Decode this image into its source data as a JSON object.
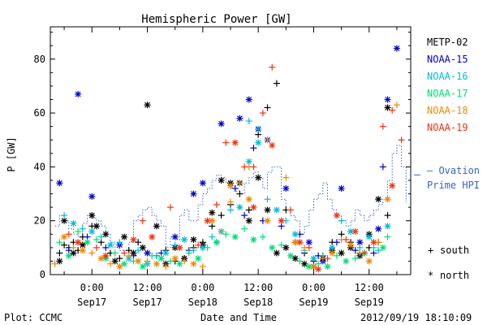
{
  "chart_data": {
    "type": "scatter",
    "title": "Hemispheric Power [GW]",
    "xlabel": "Date and Time",
    "ylabel": "P [GW]",
    "ylim": [
      0,
      92
    ],
    "yticks": [
      0,
      20,
      40,
      60,
      80
    ],
    "xlim_hours": [
      -9,
      69
    ],
    "xticks": [
      {
        "hour": 0,
        "time": "0:00",
        "date": "Sep17"
      },
      {
        "hour": 12,
        "time": "12:00",
        "date": "Sep17"
      },
      {
        "hour": 24,
        "time": "0:00",
        "date": "Sep18"
      },
      {
        "hour": 36,
        "time": "12:00",
        "date": "Sep18"
      },
      {
        "hour": 48,
        "time": "0:00",
        "date": "Sep19"
      },
      {
        "hour": 60,
        "time": "12:00",
        "date": "Sep19"
      }
    ],
    "grid": false,
    "legend_position": "right",
    "series": [
      {
        "name": "METP-02",
        "color": "#000000",
        "south": [
          [
            -7,
            8
          ],
          [
            -6,
            11
          ],
          [
            -5,
            10
          ],
          [
            -4,
            12
          ],
          [
            -3,
            9
          ],
          [
            -2,
            14
          ],
          [
            0,
            18
          ],
          [
            2,
            12
          ],
          [
            4,
            8
          ],
          [
            6,
            6
          ],
          [
            8,
            9
          ],
          [
            10,
            12
          ],
          [
            12,
            8
          ],
          [
            14,
            7
          ],
          [
            16,
            9
          ],
          [
            18,
            5
          ],
          [
            20,
            6
          ],
          [
            22,
            10
          ],
          [
            24,
            12
          ],
          [
            26,
            18
          ],
          [
            28,
            22
          ],
          [
            30,
            26
          ],
          [
            32,
            30
          ],
          [
            34,
            24
          ],
          [
            36,
            52
          ],
          [
            38,
            62
          ],
          [
            40,
            71
          ],
          [
            42,
            24
          ],
          [
            44,
            12
          ],
          [
            46,
            8
          ],
          [
            48,
            5
          ],
          [
            50,
            7
          ],
          [
            52,
            12
          ],
          [
            54,
            15
          ],
          [
            56,
            12
          ],
          [
            58,
            8
          ],
          [
            60,
            10
          ],
          [
            62,
            12
          ],
          [
            64,
            22
          ]
        ],
        "north": [
          [
            -7,
            5
          ],
          [
            -6,
            20
          ],
          [
            -4,
            8
          ],
          [
            -2,
            11
          ],
          [
            0,
            22
          ],
          [
            1,
            18
          ],
          [
            3,
            15
          ],
          [
            5,
            5
          ],
          [
            7,
            14
          ],
          [
            9,
            8
          ],
          [
            11,
            10
          ],
          [
            12,
            63
          ],
          [
            14,
            18
          ],
          [
            16,
            4
          ],
          [
            18,
            10
          ],
          [
            20,
            6
          ],
          [
            22,
            13
          ],
          [
            24,
            11
          ],
          [
            26,
            23
          ],
          [
            28,
            35
          ],
          [
            30,
            34
          ],
          [
            32,
            34
          ],
          [
            34,
            20
          ],
          [
            36,
            36
          ],
          [
            38,
            24
          ],
          [
            40,
            8
          ],
          [
            42,
            10
          ],
          [
            44,
            6
          ],
          [
            46,
            4
          ],
          [
            48,
            3
          ],
          [
            50,
            6
          ],
          [
            52,
            9
          ],
          [
            54,
            8
          ],
          [
            56,
            10
          ],
          [
            58,
            7
          ],
          [
            60,
            15
          ],
          [
            62,
            28
          ],
          [
            64,
            62
          ]
        ]
      },
      {
        "name": "NOAA-15",
        "color": "#0000cc",
        "south": [
          [
            -5,
            9
          ],
          [
            -1,
            14
          ],
          [
            3,
            10
          ],
          [
            9,
            7
          ],
          [
            15,
            8
          ],
          [
            21,
            9
          ],
          [
            27,
            12
          ],
          [
            31,
            32
          ],
          [
            33,
            22
          ],
          [
            35,
            47
          ],
          [
            37,
            20
          ],
          [
            41,
            18
          ],
          [
            45,
            15
          ],
          [
            49,
            7
          ],
          [
            53,
            12
          ],
          [
            57,
            9
          ],
          [
            61,
            8
          ],
          [
            63,
            40
          ]
        ],
        "north": [
          [
            -7,
            34
          ],
          [
            -3,
            67
          ],
          [
            0,
            29
          ],
          [
            6,
            11
          ],
          [
            12,
            8
          ],
          [
            18,
            14
          ],
          [
            22,
            30
          ],
          [
            24,
            34
          ],
          [
            28,
            56
          ],
          [
            32,
            58
          ],
          [
            34,
            65
          ],
          [
            36,
            54
          ],
          [
            38,
            50
          ],
          [
            42,
            32
          ],
          [
            47,
            12
          ],
          [
            50,
            5
          ],
          [
            54,
            32
          ],
          [
            58,
            12
          ],
          [
            62,
            17
          ],
          [
            64,
            65
          ],
          [
            66,
            84
          ]
        ]
      },
      {
        "name": "NOAA-16",
        "color": "#00bbdd",
        "south": [
          [
            -6,
            22
          ],
          [
            -2,
            17
          ],
          [
            2,
            14
          ],
          [
            6,
            12
          ],
          [
            10,
            9
          ],
          [
            14,
            7
          ],
          [
            18,
            11
          ],
          [
            22,
            9
          ],
          [
            26,
            14
          ],
          [
            30,
            24
          ],
          [
            34,
            57
          ],
          [
            36,
            54
          ],
          [
            38,
            28
          ],
          [
            42,
            20
          ],
          [
            46,
            9
          ],
          [
            50,
            7
          ],
          [
            54,
            20
          ],
          [
            58,
            10
          ],
          [
            62,
            9
          ]
        ],
        "north": [
          [
            -4,
            19
          ],
          [
            0,
            16
          ],
          [
            4,
            11
          ],
          [
            8,
            6
          ],
          [
            12,
            4
          ],
          [
            16,
            8
          ],
          [
            20,
            13
          ],
          [
            24,
            10
          ],
          [
            28,
            16
          ],
          [
            32,
            25
          ],
          [
            34,
            42
          ],
          [
            36,
            49
          ],
          [
            40,
            24
          ],
          [
            44,
            15
          ],
          [
            48,
            6
          ],
          [
            52,
            10
          ],
          [
            56,
            16
          ],
          [
            60,
            14
          ],
          [
            64,
            18
          ]
        ]
      },
      {
        "name": "NOAA-17",
        "color": "#00dd77",
        "south": [
          [
            -7,
            12
          ],
          [
            -3,
            16
          ],
          [
            1,
            13
          ],
          [
            5,
            8
          ],
          [
            9,
            5
          ],
          [
            13,
            7
          ],
          [
            17,
            5
          ],
          [
            21,
            8
          ],
          [
            25,
            10
          ],
          [
            29,
            15
          ],
          [
            33,
            17
          ],
          [
            37,
            14
          ],
          [
            41,
            11
          ],
          [
            45,
            5
          ],
          [
            49,
            4
          ],
          [
            53,
            7
          ],
          [
            57,
            6
          ],
          [
            61,
            10
          ],
          [
            64,
            14
          ]
        ],
        "north": [
          [
            -5,
            7
          ],
          [
            -1,
            12
          ],
          [
            3,
            6
          ],
          [
            7,
            4
          ],
          [
            11,
            3
          ],
          [
            15,
            6
          ],
          [
            19,
            4
          ],
          [
            23,
            6
          ],
          [
            27,
            12
          ],
          [
            31,
            14
          ],
          [
            35,
            13
          ],
          [
            39,
            10
          ],
          [
            43,
            7
          ],
          [
            47,
            3
          ],
          [
            51,
            3
          ],
          [
            55,
            5
          ],
          [
            59,
            8
          ],
          [
            63,
            10
          ]
        ]
      },
      {
        "name": "NOAA-18",
        "color": "#ee8800",
        "south": [
          [
            -8,
            4
          ],
          [
            -4,
            10
          ],
          [
            0,
            8
          ],
          [
            4,
            4
          ],
          [
            8,
            7
          ],
          [
            12,
            5
          ],
          [
            16,
            3
          ],
          [
            20,
            5
          ],
          [
            24,
            3
          ],
          [
            28,
            16
          ],
          [
            30,
            27
          ],
          [
            32,
            34
          ],
          [
            34,
            40
          ],
          [
            38,
            50
          ],
          [
            42,
            36
          ],
          [
            46,
            10
          ],
          [
            50,
            6
          ],
          [
            54,
            13
          ],
          [
            58,
            8
          ],
          [
            62,
            12
          ],
          [
            66,
            63
          ]
        ],
        "north": [
          [
            -6,
            14
          ],
          [
            -2,
            9
          ],
          [
            2,
            6
          ],
          [
            6,
            3
          ],
          [
            10,
            5
          ],
          [
            14,
            4
          ],
          [
            18,
            6
          ],
          [
            22,
            4
          ],
          [
            26,
            20
          ],
          [
            30,
            33
          ],
          [
            34,
            28
          ],
          [
            38,
            20
          ],
          [
            44,
            12
          ],
          [
            48,
            3
          ],
          [
            52,
            8
          ],
          [
            56,
            11
          ],
          [
            60,
            5
          ],
          [
            64,
            28
          ]
        ]
      },
      {
        "name": "NOAA-19",
        "color": "#ee3311",
        "south": [
          [
            -5,
            15
          ],
          [
            1,
            10
          ],
          [
            7,
            8
          ],
          [
            11,
            20
          ],
          [
            17,
            25
          ],
          [
            23,
            11
          ],
          [
            27,
            26
          ],
          [
            29,
            49
          ],
          [
            33,
            40
          ],
          [
            35,
            40
          ],
          [
            37,
            60
          ],
          [
            39,
            77
          ],
          [
            43,
            24
          ],
          [
            47,
            10
          ],
          [
            51,
            6
          ],
          [
            55,
            13
          ],
          [
            59,
            8
          ],
          [
            63,
            55
          ],
          [
            65,
            61
          ],
          [
            67,
            50
          ]
        ],
        "north": [
          [
            -3,
            12
          ],
          [
            3,
            7
          ],
          [
            9,
            13
          ],
          [
            13,
            14
          ],
          [
            19,
            10
          ],
          [
            25,
            20
          ],
          [
            31,
            49
          ],
          [
            35,
            25
          ],
          [
            39,
            48
          ],
          [
            41,
            20
          ],
          [
            45,
            12
          ],
          [
            49,
            2
          ],
          [
            53,
            22
          ],
          [
            57,
            16
          ],
          [
            61,
            12
          ],
          [
            65,
            33
          ]
        ]
      }
    ],
    "ovation": {
      "name": "Ovation Prime HPI",
      "color": "#3366cc",
      "x_hours": [
        -8,
        -7,
        -6,
        -5,
        -4,
        -3,
        -2,
        -1,
        0,
        1,
        2,
        3,
        4,
        5,
        6,
        7,
        8,
        9,
        10,
        11,
        12,
        13,
        14,
        15,
        16,
        17,
        18,
        19,
        20,
        21,
        22,
        23,
        24,
        25,
        26,
        27,
        28,
        29,
        30,
        31,
        32,
        33,
        34,
        35,
        36,
        37,
        38,
        39,
        40,
        41,
        42,
        43,
        44,
        45,
        46,
        47,
        48,
        49,
        50,
        51,
        52,
        53,
        54,
        55,
        56,
        57,
        58,
        59,
        60,
        61,
        62,
        63,
        64,
        65,
        66,
        67,
        68
      ],
      "y": [
        18,
        22,
        20,
        17,
        15,
        14,
        19,
        22,
        21,
        20,
        18,
        15,
        12,
        10,
        9,
        8,
        12,
        20,
        22,
        24,
        25,
        22,
        20,
        18,
        10,
        14,
        13,
        22,
        24,
        20,
        20,
        26,
        30,
        32,
        35,
        37,
        36,
        34,
        32,
        31,
        30,
        34,
        36,
        38,
        36,
        32,
        38,
        40,
        40,
        28,
        24,
        22,
        20,
        15,
        18,
        24,
        28,
        30,
        34,
        28,
        24,
        22,
        20,
        18,
        20,
        24,
        22,
        20,
        22,
        24,
        26,
        28,
        35,
        45,
        48,
        40,
        27
      ]
    },
    "legend": {
      "entries": [
        "METP-02",
        "NOAA-15",
        "NOAA-16",
        "NOAA-17",
        "NOAA-18",
        "NOAA-19"
      ],
      "ovation_line1": "— Ovation",
      "ovation_line2": "Prime HPI",
      "south_label": "south",
      "north_label": "north",
      "south_symbol": "+",
      "north_symbol": "*"
    },
    "footer": {
      "left": "Plot: CCMC",
      "right": "2012/09/19 18:10:09"
    }
  }
}
